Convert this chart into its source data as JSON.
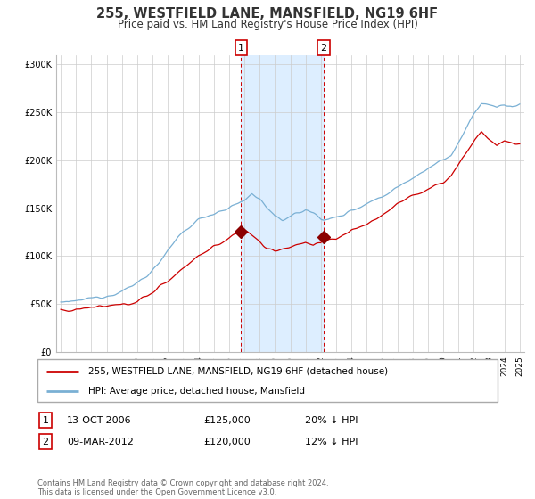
{
  "title": "255, WESTFIELD LANE, MANSFIELD, NG19 6HF",
  "subtitle": "Price paid vs. HM Land Registry's House Price Index (HPI)",
  "legend_line1": "255, WESTFIELD LANE, MANSFIELD, NG19 6HF (detached house)",
  "legend_line2": "HPI: Average price, detached house, Mansfield",
  "annotation1_label": "1",
  "annotation1_date": "13-OCT-2006",
  "annotation1_price": "£125,000",
  "annotation1_hpi": "20% ↓ HPI",
  "annotation1_year": 2006.79,
  "annotation1_value": 125000,
  "annotation2_label": "2",
  "annotation2_date": "09-MAR-2012",
  "annotation2_price": "£120,000",
  "annotation2_hpi": "12% ↓ HPI",
  "annotation2_year": 2012.19,
  "annotation2_value": 120000,
  "hpi_color": "#7ab0d4",
  "price_color": "#cc0000",
  "shade_color": "#ddeeff",
  "background_color": "#ffffff",
  "ylim": [
    0,
    310000
  ],
  "yticks": [
    0,
    50000,
    100000,
    150000,
    200000,
    250000,
    300000
  ],
  "footer": "Contains HM Land Registry data © Crown copyright and database right 2024.\nThis data is licensed under the Open Government Licence v3.0."
}
